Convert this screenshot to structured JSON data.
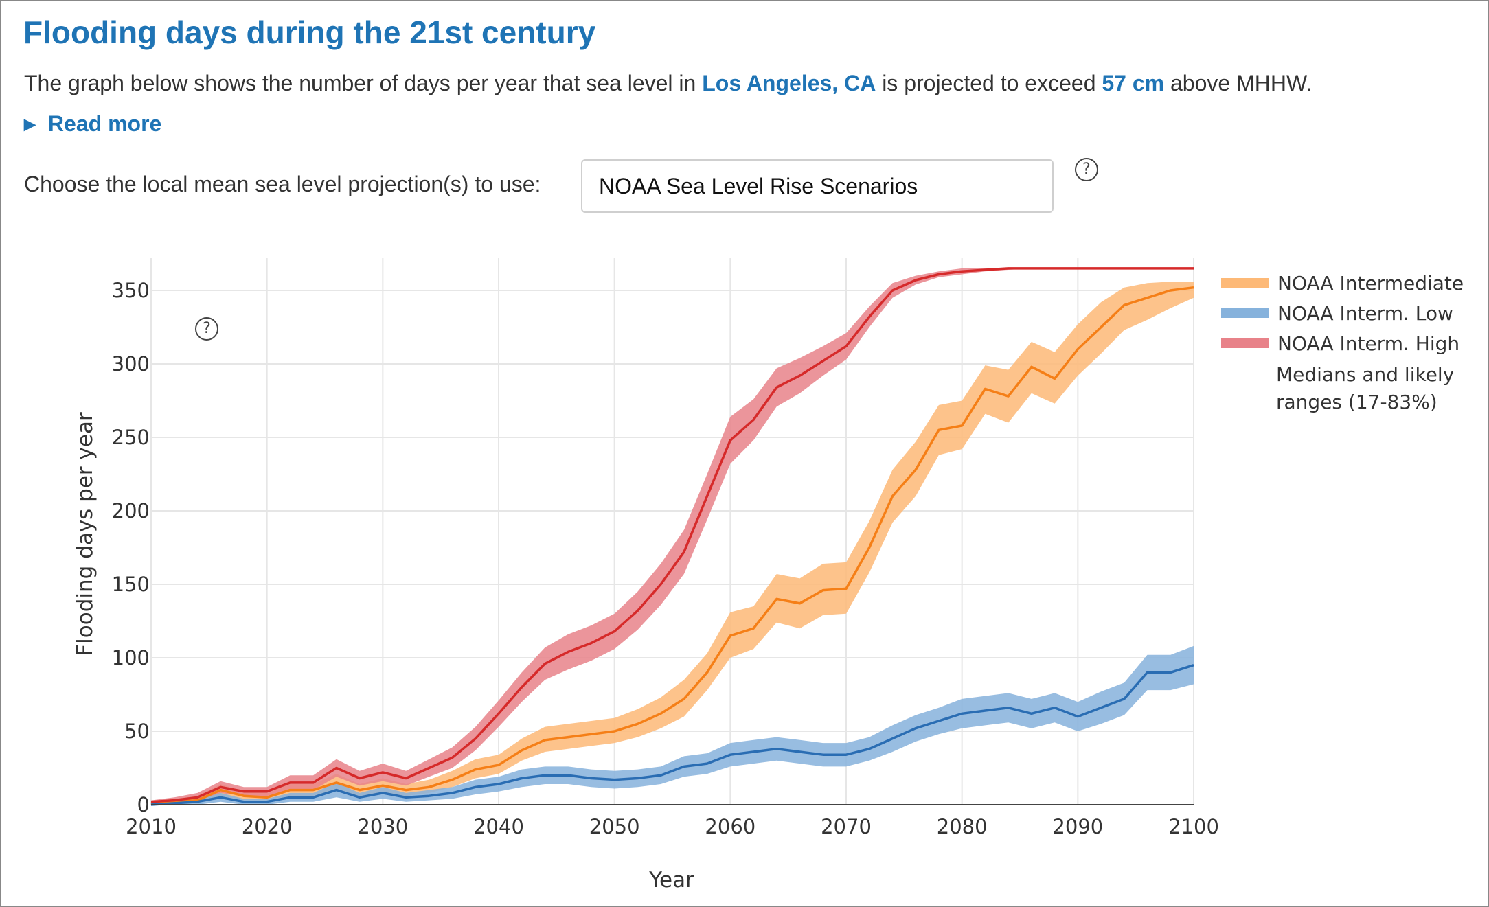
{
  "header": {
    "title": "Flooding days during the 21st century",
    "desc_pre": "The graph below shows the number of days per year that sea level in",
    "location": "Los Angeles, CA",
    "desc_mid": "is projected to exceed",
    "threshold": "57 cm",
    "desc_post": "above MHHW.",
    "read_more": "Read more",
    "read_more_icon": "triangle-right-icon"
  },
  "controls": {
    "choose_label": "Choose the local mean sea level projection(s) to use:",
    "projection_value": "NOAA Sea Level Rise Scenarios",
    "help_glyph": "?",
    "help_icon": "question-circle-icon"
  },
  "chart_data": {
    "type": "line",
    "title": "",
    "xlabel": "Year",
    "ylabel": "Flooding days per year",
    "xlim": [
      2010,
      2100
    ],
    "ylim": [
      0,
      370
    ],
    "x_ticks": [
      2010,
      2020,
      2030,
      2040,
      2050,
      2060,
      2070,
      2080,
      2090,
      2100
    ],
    "y_ticks": [
      0,
      50,
      100,
      150,
      200,
      250,
      300,
      350
    ],
    "grid": true,
    "legend_position": "right",
    "legend_note": [
      "Medians and likely",
      "ranges (17-83%)"
    ],
    "x": [
      2010,
      2012,
      2014,
      2016,
      2018,
      2020,
      2022,
      2024,
      2026,
      2028,
      2030,
      2032,
      2034,
      2036,
      2038,
      2040,
      2042,
      2044,
      2046,
      2048,
      2050,
      2052,
      2054,
      2056,
      2058,
      2060,
      2062,
      2064,
      2066,
      2068,
      2070,
      2072,
      2074,
      2076,
      2078,
      2080,
      2082,
      2084,
      2086,
      2088,
      2090,
      2092,
      2094,
      2096,
      2098,
      2100
    ],
    "series": [
      {
        "name": "NOAA Intermediate",
        "line_color": "#f57f17",
        "band_color": "#fdb977",
        "median": [
          1,
          2,
          3,
          10,
          6,
          5,
          10,
          10,
          15,
          10,
          13,
          10,
          12,
          17,
          24,
          27,
          37,
          44,
          46,
          48,
          50,
          55,
          62,
          72,
          90,
          115,
          120,
          140,
          137,
          146,
          147,
          175,
          210,
          228,
          255,
          258,
          283,
          278,
          298,
          290,
          310,
          325,
          340,
          345,
          350,
          352
        ],
        "lower": [
          0,
          1,
          2,
          6,
          3,
          3,
          6,
          6,
          9,
          6,
          8,
          6,
          8,
          12,
          18,
          21,
          30,
          36,
          38,
          40,
          42,
          46,
          52,
          60,
          78,
          100,
          106,
          124,
          120,
          129,
          130,
          158,
          192,
          210,
          238,
          242,
          266,
          260,
          280,
          273,
          292,
          307,
          323,
          330,
          338,
          345
        ],
        "upper": [
          2,
          4,
          6,
          14,
          9,
          8,
          14,
          14,
          21,
          14,
          18,
          14,
          17,
          23,
          31,
          34,
          45,
          53,
          55,
          57,
          59,
          65,
          73,
          85,
          103,
          131,
          135,
          157,
          154,
          164,
          165,
          193,
          228,
          247,
          272,
          275,
          299,
          296,
          315,
          308,
          327,
          342,
          352,
          355,
          356,
          356
        ]
      },
      {
        "name": "NOAA Interm. Low",
        "line_color": "#2a6db3",
        "band_color": "#86b2dc",
        "median": [
          0,
          1,
          2,
          5,
          2,
          2,
          5,
          5,
          10,
          5,
          8,
          5,
          6,
          8,
          12,
          14,
          18,
          20,
          20,
          18,
          17,
          18,
          20,
          26,
          28,
          34,
          36,
          38,
          36,
          34,
          34,
          38,
          45,
          52,
          57,
          62,
          64,
          66,
          62,
          66,
          60,
          66,
          72,
          90,
          90,
          95
        ],
        "lower": [
          0,
          0,
          0,
          2,
          0,
          0,
          2,
          2,
          5,
          2,
          4,
          2,
          3,
          4,
          7,
          9,
          12,
          14,
          14,
          12,
          11,
          12,
          14,
          19,
          21,
          26,
          28,
          30,
          28,
          26,
          26,
          30,
          36,
          43,
          48,
          52,
          54,
          56,
          52,
          56,
          50,
          55,
          61,
          78,
          78,
          82
        ],
        "upper": [
          1,
          2,
          4,
          8,
          4,
          4,
          8,
          8,
          15,
          8,
          12,
          8,
          10,
          12,
          17,
          19,
          24,
          26,
          26,
          24,
          23,
          24,
          26,
          33,
          35,
          42,
          44,
          46,
          44,
          42,
          42,
          46,
          54,
          61,
          66,
          72,
          74,
          76,
          72,
          76,
          70,
          77,
          83,
          102,
          102,
          108
        ]
      },
      {
        "name": "NOAA Interm. High",
        "line_color": "#d62a2a",
        "band_color": "#e88289",
        "median": [
          2,
          3,
          5,
          12,
          9,
          9,
          15,
          15,
          25,
          18,
          22,
          18,
          25,
          32,
          45,
          62,
          80,
          96,
          104,
          110,
          118,
          132,
          150,
          172,
          210,
          248,
          262,
          284,
          292,
          302,
          312,
          332,
          350,
          357,
          361,
          363,
          364,
          365,
          365,
          365,
          365,
          365,
          365,
          365,
          365,
          365
        ],
        "lower": [
          1,
          2,
          3,
          8,
          6,
          6,
          10,
          10,
          19,
          13,
          16,
          13,
          19,
          25,
          37,
          53,
          70,
          85,
          92,
          98,
          106,
          119,
          136,
          157,
          194,
          232,
          248,
          271,
          280,
          292,
          303,
          325,
          345,
          354,
          359,
          361,
          363,
          364,
          365,
          365,
          365,
          365,
          365,
          365,
          365,
          365
        ],
        "upper": [
          3,
          5,
          8,
          16,
          12,
          12,
          20,
          20,
          31,
          23,
          28,
          23,
          31,
          39,
          53,
          71,
          90,
          107,
          116,
          122,
          130,
          145,
          164,
          187,
          225,
          264,
          276,
          297,
          304,
          312,
          321,
          339,
          355,
          360,
          363,
          365,
          365,
          365,
          365,
          365,
          365,
          365,
          365,
          365,
          365,
          365
        ]
      }
    ]
  }
}
